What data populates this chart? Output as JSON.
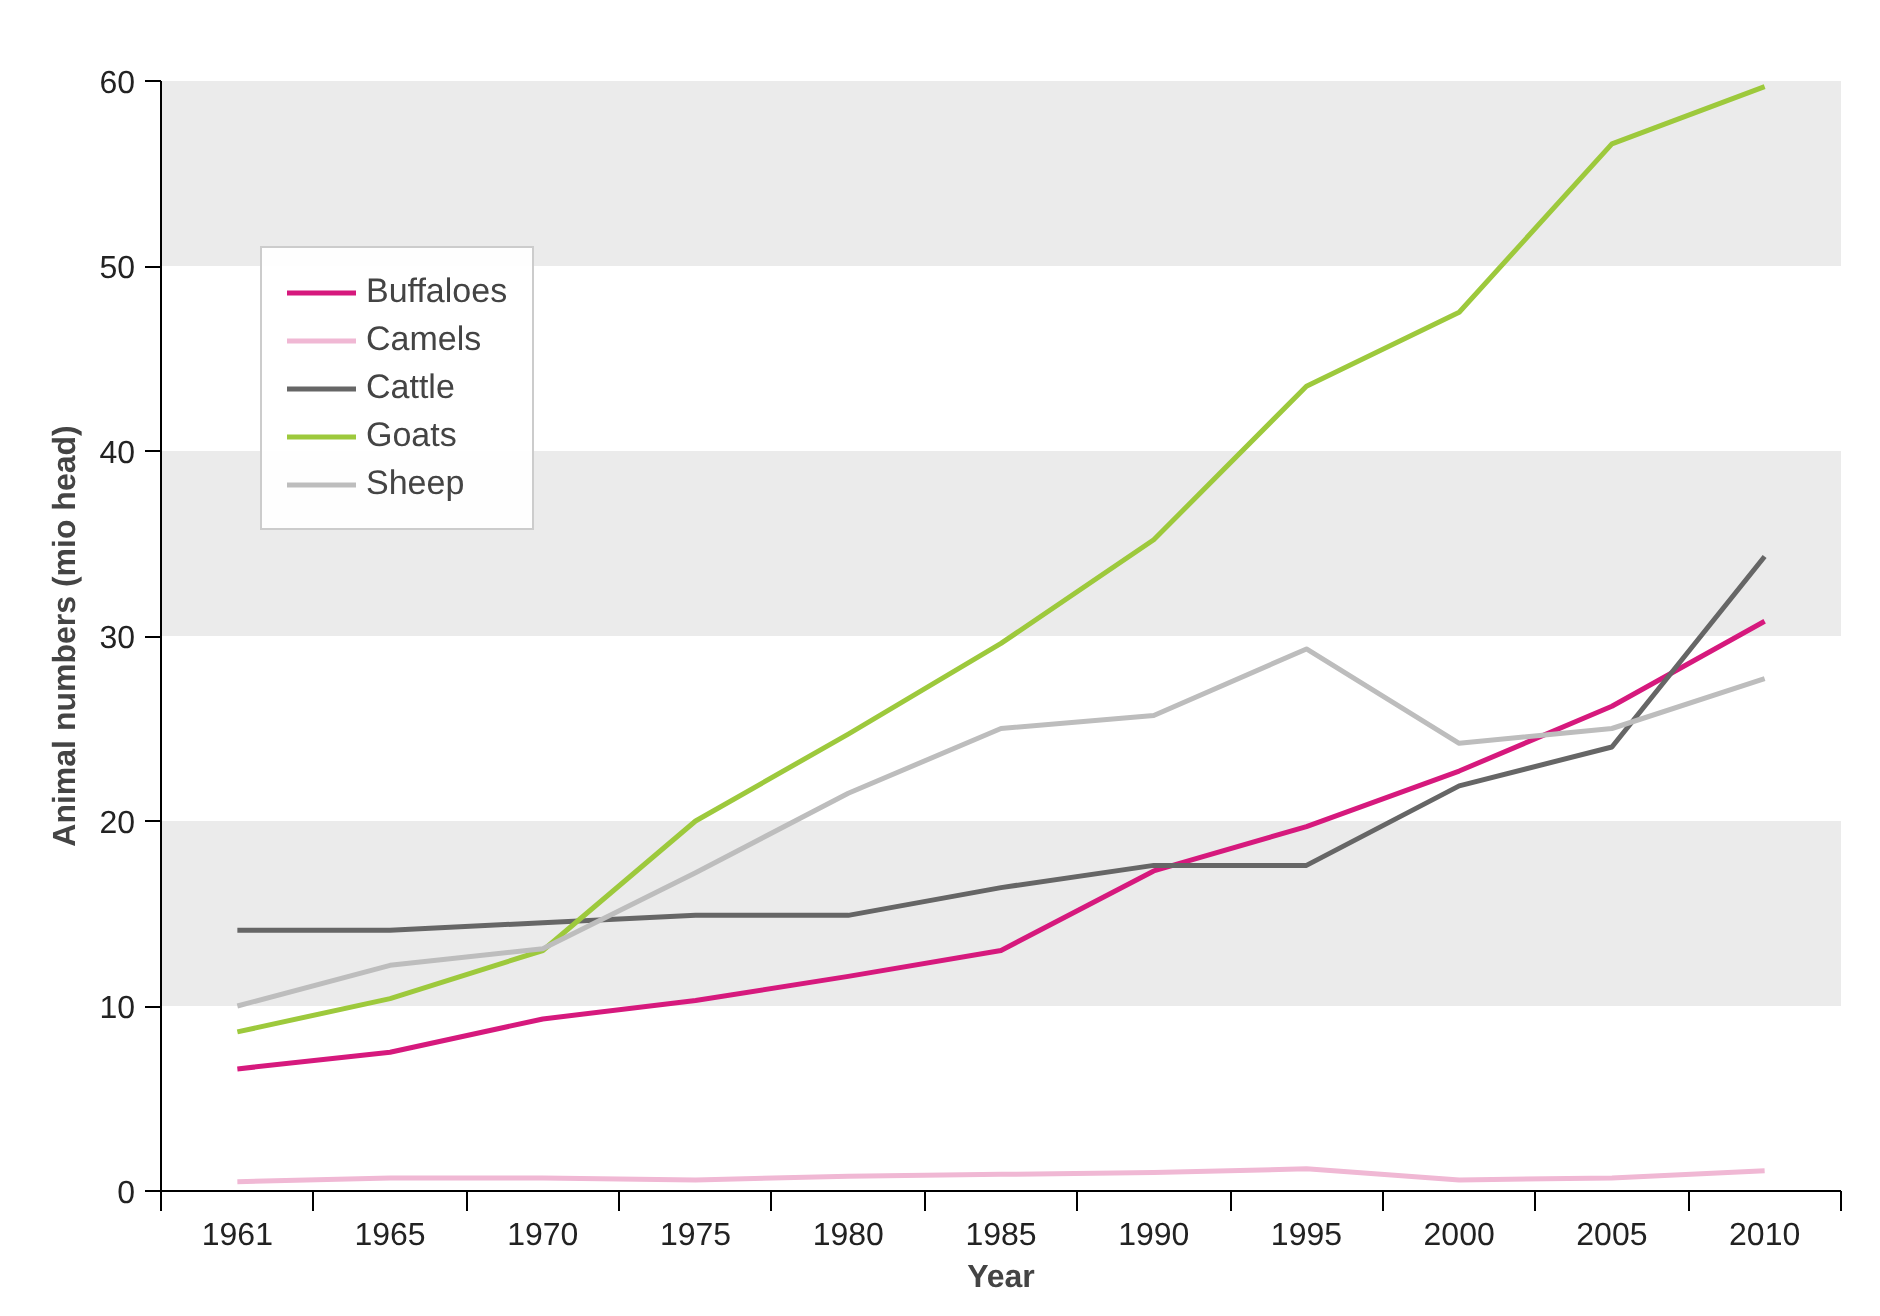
{
  "chart_data": {
    "type": "line",
    "xlabel": "Year",
    "ylabel": "Animal numbers (mio head)",
    "categories": [
      "1961",
      "1965",
      "1970",
      "1975",
      "1980",
      "1985",
      "1990",
      "1995",
      "2000",
      "2005",
      "2010"
    ],
    "series": [
      {
        "name": "Buffaloes",
        "color": "#d6197d",
        "values": [
          6.6,
          7.5,
          9.3,
          10.3,
          11.6,
          13,
          17.3,
          19.7,
          22.7,
          26.2,
          30.8
        ]
      },
      {
        "name": "Camels",
        "color": "#f0b8d4",
        "values": [
          0.5,
          0.7,
          0.7,
          0.6,
          0.8,
          0.9,
          1.0,
          1.2,
          0.6,
          0.7,
          1.1
        ]
      },
      {
        "name": "Cattle",
        "color": "#666666",
        "values": [
          14.1,
          14.1,
          14.5,
          14.9,
          14.9,
          16.4,
          17.6,
          17.6,
          21.9,
          24,
          34.3
        ]
      },
      {
        "name": "Goats",
        "color": "#9dc93c",
        "values": [
          8.6,
          10.4,
          13,
          20,
          24.7,
          29.6,
          35.2,
          43.5,
          47.5,
          56.6,
          59.7
        ]
      },
      {
        "name": "Sheep",
        "color": "#bdbdbd",
        "values": [
          10,
          12.2,
          13.1,
          17.2,
          21.5,
          25,
          25.7,
          29.3,
          24.2,
          25,
          27.7
        ]
      }
    ],
    "ylim": [
      0,
      60
    ],
    "yticks": [
      0,
      10,
      20,
      30,
      40,
      50,
      60
    ],
    "bands": [
      {
        "axis": "y",
        "from": 10,
        "to": 20,
        "color": "#ebebeb"
      },
      {
        "axis": "y",
        "from": 30,
        "to": 40,
        "color": "#ebebeb"
      },
      {
        "axis": "y",
        "from": 50,
        "to": 60,
        "color": "#ebebeb"
      }
    ],
    "grid": false,
    "legend": "top left",
    "marker": "none",
    "line_style": "solid"
  }
}
